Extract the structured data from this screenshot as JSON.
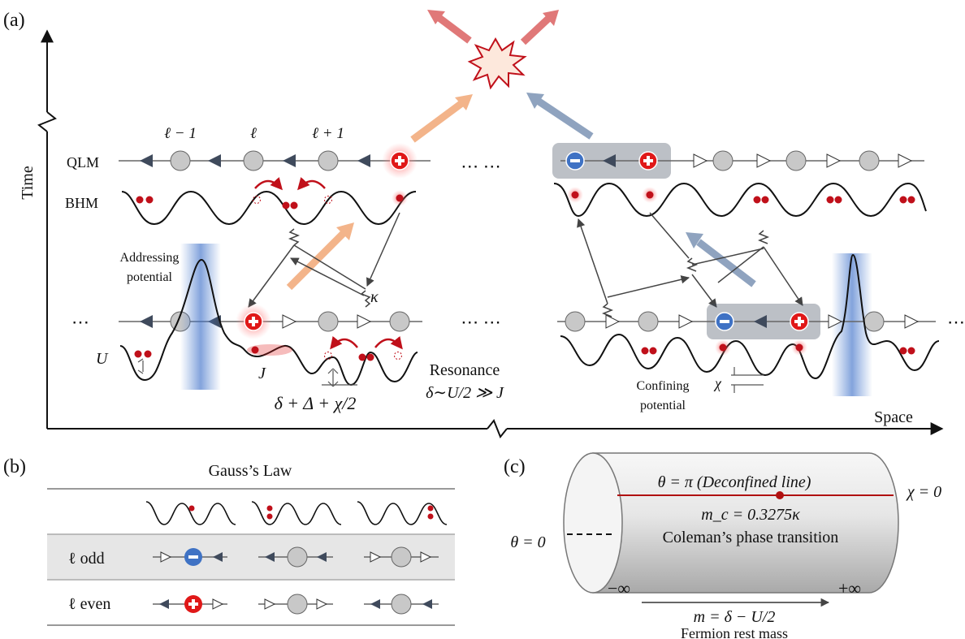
{
  "panel_a": {
    "label": "(a)",
    "axis_time": "Time",
    "axis_space": "Space",
    "qlm_label": "QLM",
    "bhm_label": "BHM",
    "site_left": "ℓ − 1",
    "site_mid": "ℓ",
    "site_right": "ℓ + 1",
    "addressing": [
      "Addressing",
      "potential"
    ],
    "kappa": "κ",
    "U": "U",
    "J": "J",
    "delta_expr": "δ + Δ + χ/2",
    "resonance": [
      "Resonance",
      "δ∼U/2 ≫ J"
    ],
    "confining": [
      "Confining",
      "potential"
    ],
    "chi": "χ",
    "dots": "⋯ ⋯",
    "ellipsis": "⋯"
  },
  "panel_b": {
    "label": "(b)",
    "title": "Gauss’s Law",
    "row_odd": "ℓ odd",
    "row_even": "ℓ even"
  },
  "panel_c": {
    "label": "(c)",
    "line_label": "θ = π  (Deconfined line)",
    "mc": "m_c = 0.3275κ",
    "coleman": "Coleman’s phase transition",
    "theta0": "θ = 0",
    "chi0": "χ = 0",
    "minus_inf": "−∞",
    "plus_inf": "+∞",
    "mass_eq": "m = δ − U/2",
    "mass_label": "Fermion rest mass"
  },
  "colors": {
    "triangle": "#3f4a5c",
    "site": "#c8c8c8",
    "plus": "#e01818",
    "minus": "#3f72c4",
    "orange_arrow": "#f3b48a",
    "blue_arrow": "#8fa3bf",
    "red_arrow": "#e07878",
    "curve_arrow": "#c0101a"
  }
}
